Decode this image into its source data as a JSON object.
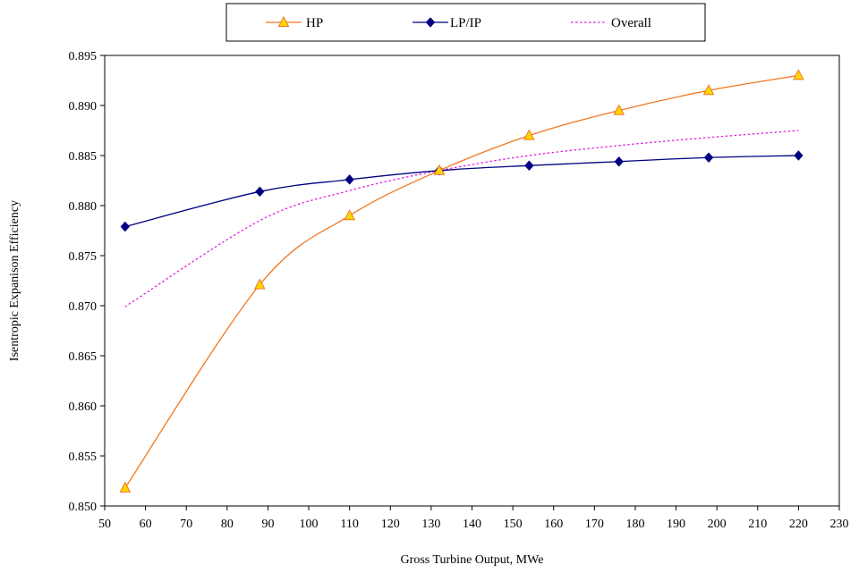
{
  "chart_data": {
    "type": "line",
    "xlabel": "Gross Turbine Output, MWe",
    "ylabel": "Isentropic Expanison Efficiency",
    "xlim": [
      50,
      230
    ],
    "ylim": [
      0.85,
      0.895
    ],
    "x_ticks": [
      50,
      60,
      70,
      80,
      90,
      100,
      110,
      120,
      130,
      140,
      150,
      160,
      170,
      180,
      190,
      200,
      210,
      220,
      230
    ],
    "y_ticks": [
      "0.850",
      "0.855",
      "0.860",
      "0.865",
      "0.870",
      "0.875",
      "0.880",
      "0.885",
      "0.890",
      "0.895"
    ],
    "grid": false,
    "legend_position": "top-center",
    "series": [
      {
        "name": "HP",
        "color": "#f07820",
        "marker": "triangle",
        "marker_fill": "#ffd700",
        "line_style": "solid",
        "x": [
          55,
          88,
          110,
          132,
          154,
          176,
          198,
          220
        ],
        "y": [
          0.8518,
          0.8721,
          0.879,
          0.8835,
          0.887,
          0.8895,
          0.8915,
          0.893
        ]
      },
      {
        "name": "LP/IP",
        "color": "#000080",
        "marker": "diamond",
        "marker_fill": "#000080",
        "line_style": "solid",
        "x": [
          55,
          88,
          110,
          132,
          154,
          176,
          198,
          220
        ],
        "y": [
          0.8779,
          0.8814,
          0.8826,
          0.8835,
          0.884,
          0.8844,
          0.8848,
          0.885
        ]
      },
      {
        "name": "Overall",
        "color": "#e020e0",
        "marker": "none",
        "line_style": "dotted",
        "x": [
          55,
          88,
          110,
          132,
          154,
          176,
          198,
          220
        ],
        "y": [
          0.8699,
          0.8785,
          0.8815,
          0.8835,
          0.885,
          0.886,
          0.8868,
          0.8875
        ]
      }
    ]
  }
}
